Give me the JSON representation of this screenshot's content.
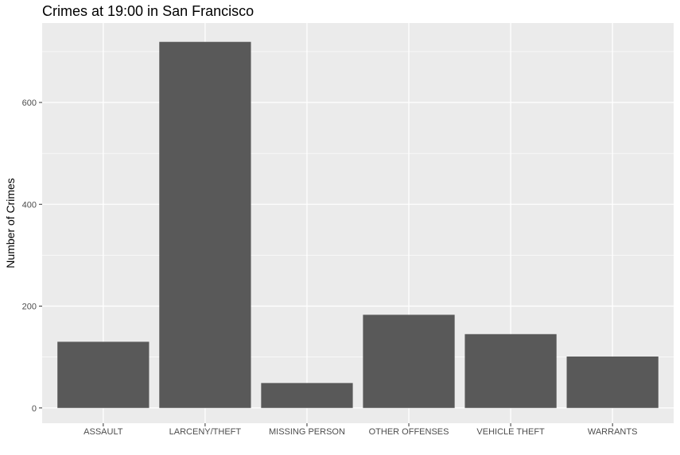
{
  "chart_data": {
    "type": "bar",
    "title": "Crimes at 19:00 in San Francisco",
    "xlabel": "",
    "ylabel": "Number of Crimes",
    "categories": [
      "ASSAULT",
      "LARCENY/THEFT",
      "MISSING PERSON",
      "OTHER OFFENSES",
      "VEHICLE THEFT",
      "WARRANTS"
    ],
    "values": [
      130,
      719,
      49,
      183,
      145,
      101
    ],
    "ylim": [
      -30,
      756
    ],
    "yticks": [
      0,
      200,
      400,
      600
    ],
    "grid": true,
    "colors": {
      "bar": "#595959",
      "panel": "#ebebeb",
      "grid_major": "#ffffff",
      "tick": "#333333"
    }
  }
}
